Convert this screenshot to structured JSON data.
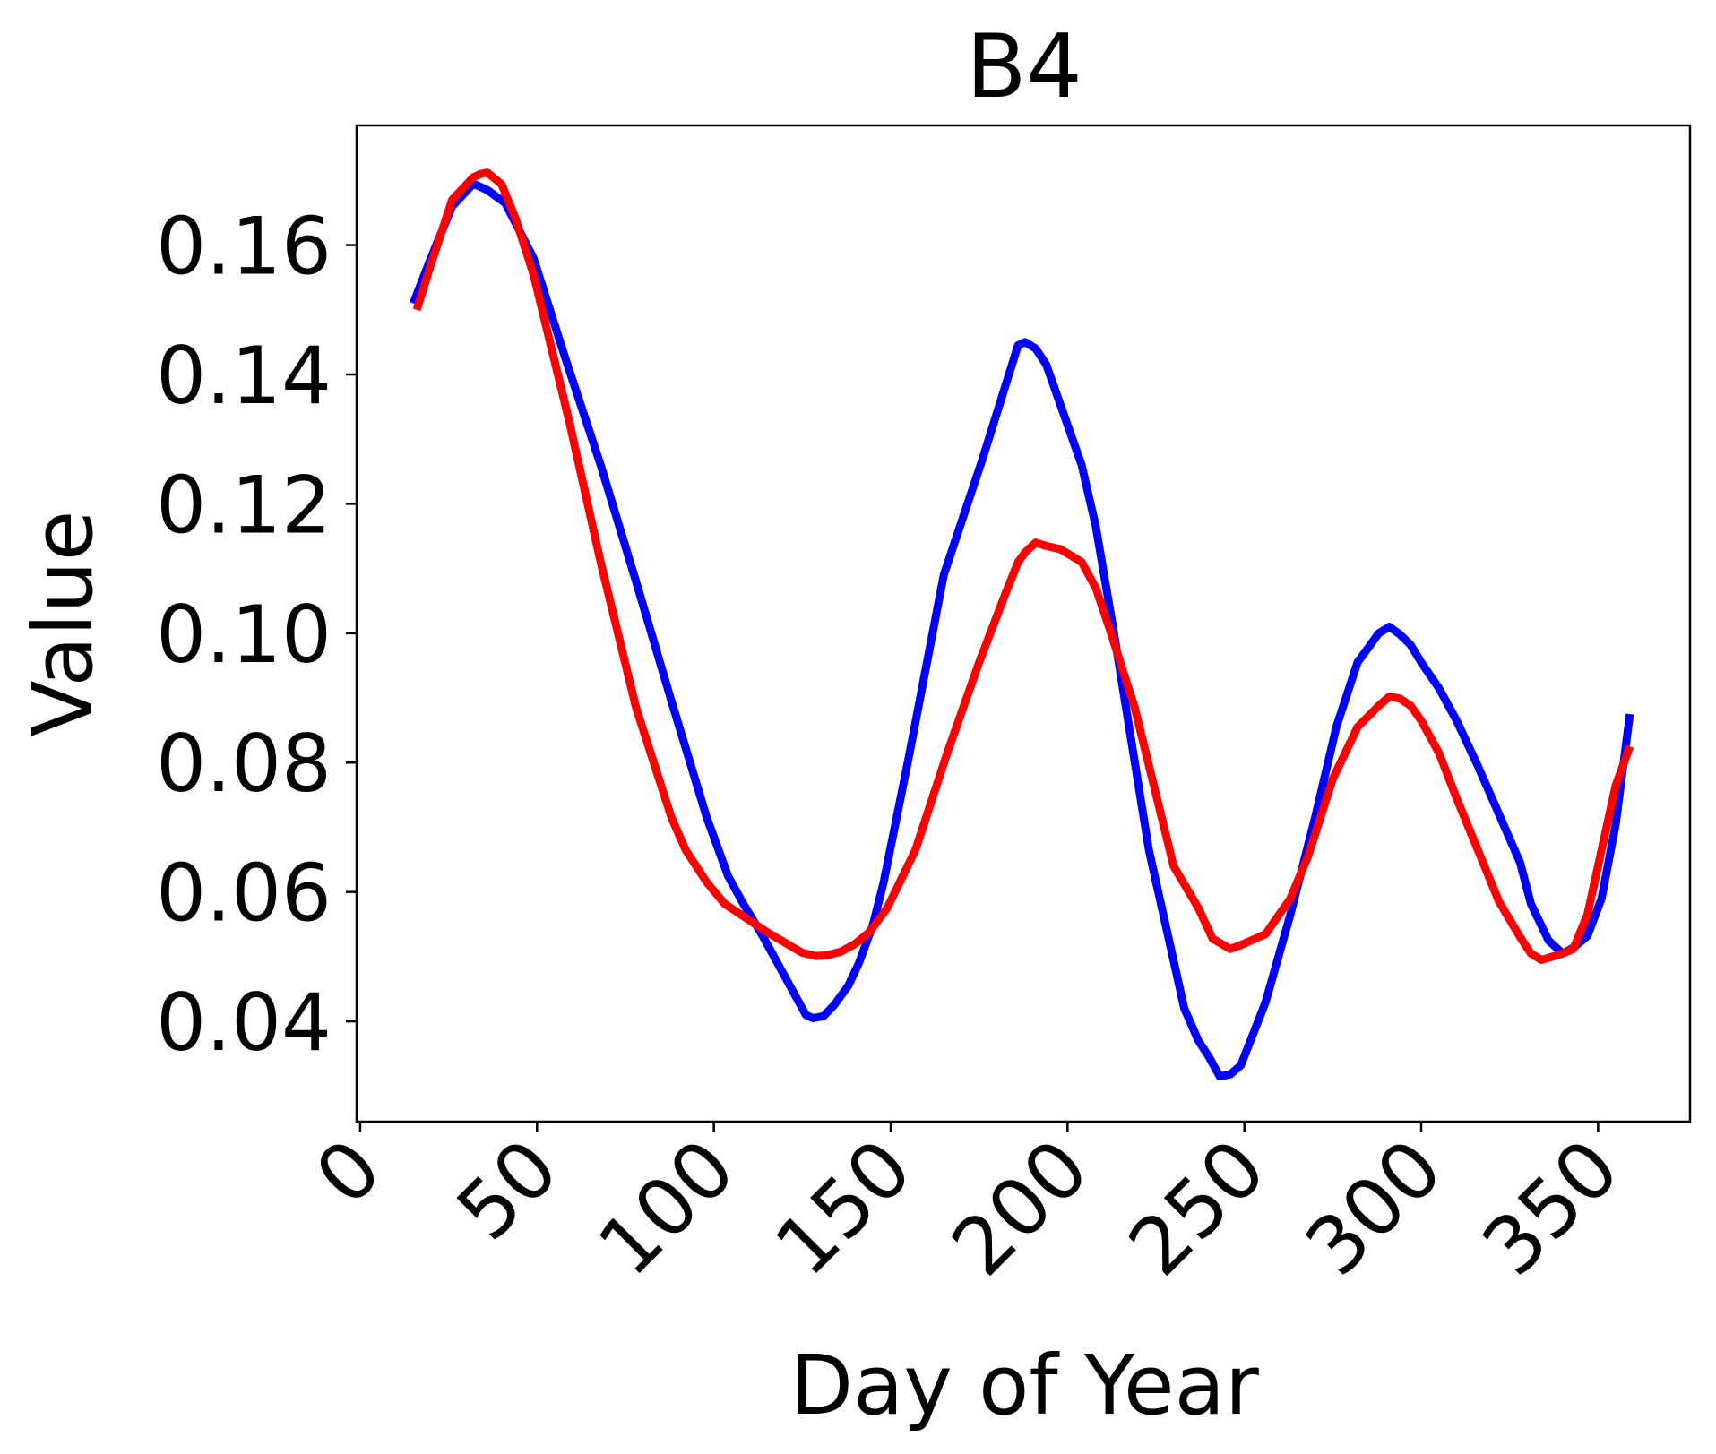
{
  "chart_data": {
    "type": "line",
    "title": "B4",
    "xlabel": "Day of Year",
    "ylabel": "Value",
    "xlim": [
      -1,
      376
    ],
    "ylim": [
      0.0245,
      0.1785
    ],
    "xticks": [
      0,
      50,
      100,
      150,
      200,
      250,
      300,
      350
    ],
    "xtick_labels": [
      "0",
      "50",
      "100",
      "150",
      "200",
      "250",
      "300",
      "350"
    ],
    "yticks": [
      0.04,
      0.06,
      0.08,
      0.1,
      0.12,
      0.14,
      0.16
    ],
    "ytick_labels": [
      "0.04",
      "0.06",
      "0.08",
      "0.10",
      "0.12",
      "0.14",
      "0.16"
    ],
    "grid": false,
    "series": [
      {
        "color": "#0000ff",
        "x": [
          15,
          20,
          26,
          32,
          36,
          41,
          49,
          58,
          68,
          78,
          88,
          98,
          104,
          108,
          114,
          120,
          126,
          128,
          131,
          134,
          138,
          141,
          145,
          148,
          155,
          165,
          176,
          186,
          188,
          191,
          194,
          204,
          208,
          213,
          223,
          233,
          237,
          240,
          243,
          246,
          249,
          256,
          263,
          270,
          276,
          282,
          288,
          291,
          294,
          297,
          300,
          305,
          310,
          316,
          322,
          328,
          331,
          336,
          340,
          343,
          347,
          351,
          355,
          359
        ],
        "y": [
          0.151,
          0.158,
          0.166,
          0.1695,
          0.1685,
          0.1665,
          0.158,
          0.1425,
          0.126,
          0.108,
          0.0895,
          0.0715,
          0.0625,
          0.0585,
          0.053,
          0.047,
          0.041,
          0.0405,
          0.0408,
          0.0425,
          0.0455,
          0.049,
          0.055,
          0.0615,
          0.0805,
          0.109,
          0.127,
          0.1445,
          0.145,
          0.144,
          0.1415,
          0.126,
          0.1165,
          0.1005,
          0.0665,
          0.042,
          0.037,
          0.0345,
          0.0315,
          0.0318,
          0.0332,
          0.043,
          0.0565,
          0.0715,
          0.0855,
          0.0955,
          0.1,
          0.101,
          0.0998,
          0.0982,
          0.0955,
          0.0915,
          0.0865,
          0.0795,
          0.072,
          0.0645,
          0.0582,
          0.0525,
          0.0505,
          0.0514,
          0.0532,
          0.059,
          0.0705,
          0.0875
        ]
      },
      {
        "color": "#ff0000",
        "x": [
          16,
          20,
          26,
          32,
          34,
          36,
          40,
          44,
          49,
          59,
          68,
          78,
          88,
          92,
          98,
          103,
          109,
          115,
          120,
          125,
          129,
          132,
          136,
          140,
          144,
          149,
          157,
          166,
          175,
          182,
          186,
          188,
          191,
          194,
          198,
          204,
          208,
          212,
          219,
          230,
          237,
          241,
          246,
          249,
          256,
          263,
          268,
          275,
          282,
          288,
          291,
          294,
          297,
          300,
          305,
          310,
          316,
          322,
          328,
          331,
          334,
          340,
          343,
          347,
          351,
          355,
          359
        ],
        "y": [
          0.15,
          0.157,
          0.167,
          0.1705,
          0.171,
          0.1712,
          0.1694,
          0.164,
          0.1555,
          0.133,
          0.111,
          0.0885,
          0.0715,
          0.0665,
          0.0615,
          0.0582,
          0.056,
          0.0538,
          0.0522,
          0.0506,
          0.0501,
          0.0502,
          0.0508,
          0.052,
          0.0538,
          0.0575,
          0.0665,
          0.0815,
          0.0955,
          0.1055,
          0.111,
          0.1125,
          0.114,
          0.1135,
          0.113,
          0.111,
          0.107,
          0.1005,
          0.0885,
          0.064,
          0.0575,
          0.0528,
          0.0512,
          0.0518,
          0.0535,
          0.059,
          0.0655,
          0.0775,
          0.0855,
          0.0888,
          0.0902,
          0.0899,
          0.0888,
          0.0865,
          0.0815,
          0.0745,
          0.0665,
          0.0585,
          0.053,
          0.0505,
          0.0495,
          0.0505,
          0.0512,
          0.0565,
          0.0665,
          0.0765,
          0.0825
        ]
      }
    ]
  }
}
